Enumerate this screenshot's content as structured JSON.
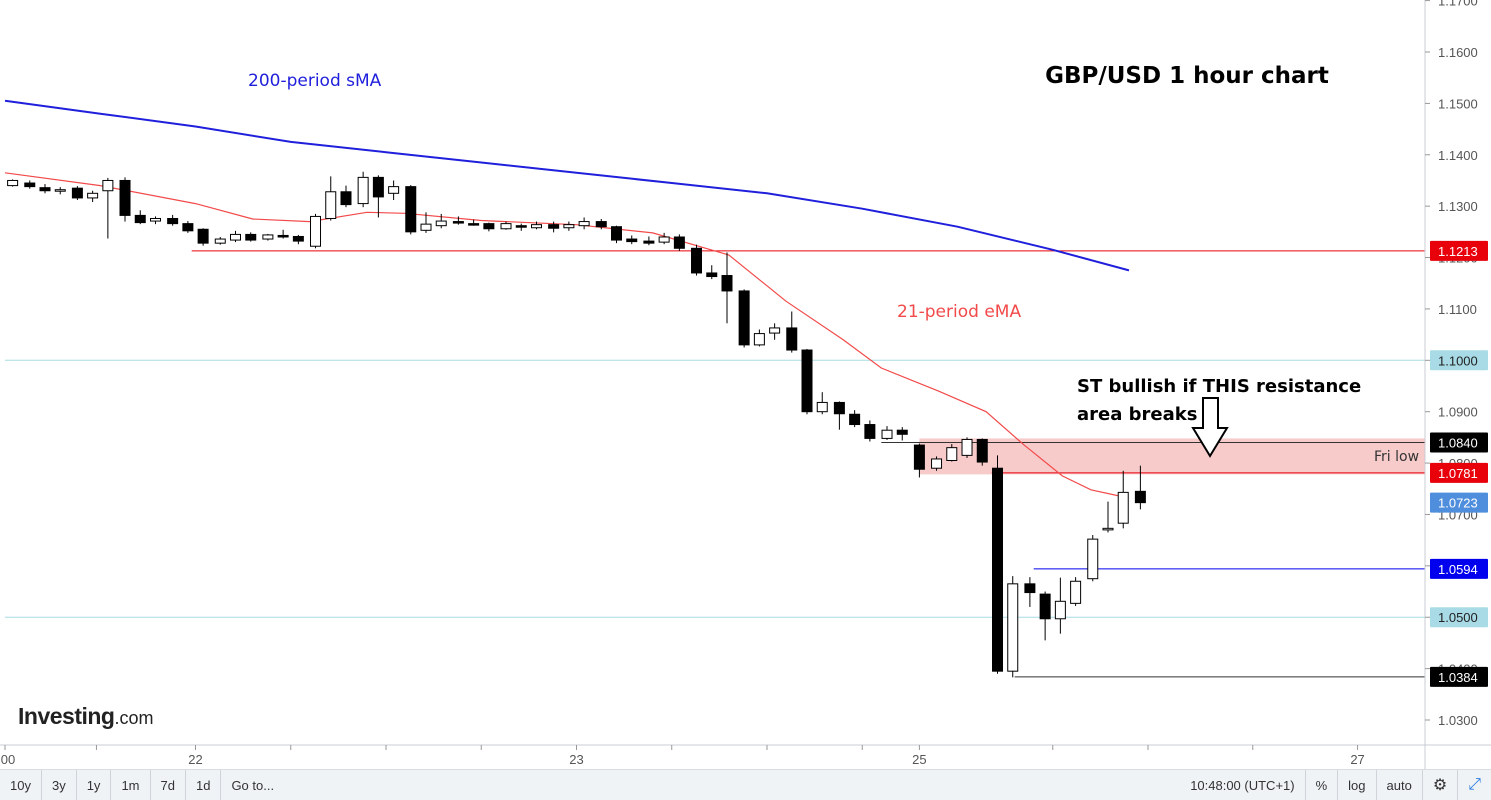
{
  "chart_data": {
    "type": "candlestick",
    "title": "GBP/USD 1 hour chart",
    "ylim": [
      1.025,
      1.17
    ],
    "y_ticks": [
      "1.0300",
      "1.0400",
      "1.0500",
      "1.0600",
      "1.0700",
      "1.0800",
      "1.0900",
      "1.1000",
      "1.1100",
      "1.1200",
      "1.1300",
      "1.1400",
      "1.1500",
      "1.1600",
      "1.1700"
    ],
    "x_tick_labels": [
      {
        "label": "00",
        "x": 0
      },
      {
        "label": "22",
        "x": 1
      },
      {
        "label": "23",
        "x": 3
      },
      {
        "label": "25",
        "x": 4.8
      },
      {
        "label": "27",
        "x": 7.1
      }
    ],
    "x_range": [
      0,
      7.6
    ],
    "series": [
      {
        "name": "200-period sMA",
        "color": "#1f1fdc",
        "points": [
          [
            0,
            1.1505
          ],
          [
            0.5,
            1.148
          ],
          [
            1,
            1.1455
          ],
          [
            1.5,
            1.1425
          ],
          [
            2,
            1.1405
          ],
          [
            2.5,
            1.1385
          ],
          [
            3,
            1.1365
          ],
          [
            3.5,
            1.1345
          ],
          [
            4,
            1.1325
          ],
          [
            4.5,
            1.1295
          ],
          [
            5,
            1.126
          ],
          [
            5.5,
            1.1215
          ],
          [
            5.9,
            1.1175
          ]
        ]
      },
      {
        "name": "21-period eMA",
        "color": "#f24a4a",
        "points": [
          [
            0,
            1.1365
          ],
          [
            0.5,
            1.134
          ],
          [
            1,
            1.1305
          ],
          [
            1.3,
            1.1275
          ],
          [
            1.6,
            1.127
          ],
          [
            1.9,
            1.1288
          ],
          [
            2.1,
            1.1286
          ],
          [
            2.5,
            1.1272
          ],
          [
            3,
            1.1264
          ],
          [
            3.4,
            1.1248
          ],
          [
            3.8,
            1.1205
          ],
          [
            4.1,
            1.1115
          ],
          [
            4.4,
            1.104
          ],
          [
            4.6,
            1.0985
          ],
          [
            4.9,
            1.094
          ],
          [
            5.15,
            1.09
          ],
          [
            5.35,
            1.0835
          ],
          [
            5.55,
            1.0775
          ],
          [
            5.7,
            1.0748
          ],
          [
            5.85,
            1.0736
          ]
        ]
      }
    ],
    "candles": [
      {
        "x": 0.04,
        "o": 1.134,
        "h": 1.1352,
        "l": 1.1338,
        "c": 1.135
      },
      {
        "x": 0.13,
        "o": 1.1345,
        "h": 1.135,
        "l": 1.1334,
        "c": 1.1338
      },
      {
        "x": 0.21,
        "o": 1.1336,
        "h": 1.1343,
        "l": 1.1325,
        "c": 1.133
      },
      {
        "x": 0.29,
        "o": 1.133,
        "h": 1.1337,
        "l": 1.1323,
        "c": 1.1332
      },
      {
        "x": 0.38,
        "o": 1.1335,
        "h": 1.1339,
        "l": 1.1312,
        "c": 1.1316
      },
      {
        "x": 0.46,
        "o": 1.1316,
        "h": 1.133,
        "l": 1.1308,
        "c": 1.1325
      },
      {
        "x": 0.54,
        "o": 1.133,
        "h": 1.1355,
        "l": 1.1237,
        "c": 1.135
      },
      {
        "x": 0.63,
        "o": 1.135,
        "h": 1.1356,
        "l": 1.127,
        "c": 1.1282
      },
      {
        "x": 0.71,
        "o": 1.1282,
        "h": 1.1292,
        "l": 1.1265,
        "c": 1.1268
      },
      {
        "x": 0.79,
        "o": 1.1271,
        "h": 1.128,
        "l": 1.1265,
        "c": 1.1276
      },
      {
        "x": 0.88,
        "o": 1.1276,
        "h": 1.1283,
        "l": 1.1262,
        "c": 1.1266
      },
      {
        "x": 0.96,
        "o": 1.1266,
        "h": 1.1271,
        "l": 1.1248,
        "c": 1.1252
      },
      {
        "x": 1.04,
        "o": 1.1255,
        "h": 1.1257,
        "l": 1.1223,
        "c": 1.1228
      },
      {
        "x": 1.13,
        "o": 1.1228,
        "h": 1.124,
        "l": 1.1225,
        "c": 1.1236
      },
      {
        "x": 1.21,
        "o": 1.1234,
        "h": 1.1252,
        "l": 1.123,
        "c": 1.1245
      },
      {
        "x": 1.29,
        "o": 1.1245,
        "h": 1.1249,
        "l": 1.1231,
        "c": 1.1234
      },
      {
        "x": 1.38,
        "o": 1.1236,
        "h": 1.1246,
        "l": 1.1233,
        "c": 1.1244
      },
      {
        "x": 1.46,
        "o": 1.1243,
        "h": 1.1254,
        "l": 1.1237,
        "c": 1.124
      },
      {
        "x": 1.54,
        "o": 1.1241,
        "h": 1.1244,
        "l": 1.1226,
        "c": 1.1232
      },
      {
        "x": 1.63,
        "o": 1.1222,
        "h": 1.1285,
        "l": 1.1218,
        "c": 1.128
      },
      {
        "x": 1.71,
        "o": 1.1276,
        "h": 1.1358,
        "l": 1.1272,
        "c": 1.1328
      },
      {
        "x": 1.79,
        "o": 1.1328,
        "h": 1.134,
        "l": 1.1298,
        "c": 1.1303
      },
      {
        "x": 1.88,
        "o": 1.1305,
        "h": 1.1367,
        "l": 1.1298,
        "c": 1.1356
      },
      {
        "x": 1.96,
        "o": 1.1356,
        "h": 1.136,
        "l": 1.1278,
        "c": 1.1318
      },
      {
        "x": 2.04,
        "o": 1.1325,
        "h": 1.135,
        "l": 1.1312,
        "c": 1.1338
      },
      {
        "x": 2.13,
        "o": 1.1338,
        "h": 1.1341,
        "l": 1.1245,
        "c": 1.125
      },
      {
        "x": 2.21,
        "o": 1.1253,
        "h": 1.1288,
        "l": 1.1248,
        "c": 1.1265
      },
      {
        "x": 2.29,
        "o": 1.1262,
        "h": 1.1285,
        "l": 1.1257,
        "c": 1.1271
      },
      {
        "x": 2.38,
        "o": 1.127,
        "h": 1.128,
        "l": 1.1264,
        "c": 1.1268
      },
      {
        "x": 2.46,
        "o": 1.1266,
        "h": 1.1274,
        "l": 1.1262,
        "c": 1.1264
      },
      {
        "x": 2.54,
        "o": 1.1266,
        "h": 1.1268,
        "l": 1.1251,
        "c": 1.1256
      },
      {
        "x": 2.63,
        "o": 1.1256,
        "h": 1.127,
        "l": 1.1254,
        "c": 1.1266
      },
      {
        "x": 2.71,
        "o": 1.1262,
        "h": 1.1266,
        "l": 1.1252,
        "c": 1.1259
      },
      {
        "x": 2.79,
        "o": 1.1258,
        "h": 1.127,
        "l": 1.1255,
        "c": 1.1264
      },
      {
        "x": 2.88,
        "o": 1.1264,
        "h": 1.127,
        "l": 1.1249,
        "c": 1.1257
      },
      {
        "x": 2.96,
        "o": 1.1258,
        "h": 1.127,
        "l": 1.1252,
        "c": 1.1264
      },
      {
        "x": 3.04,
        "o": 1.1262,
        "h": 1.1278,
        "l": 1.1255,
        "c": 1.127
      },
      {
        "x": 3.13,
        "o": 1.127,
        "h": 1.1275,
        "l": 1.1255,
        "c": 1.126
      },
      {
        "x": 3.21,
        "o": 1.126,
        "h": 1.1262,
        "l": 1.1228,
        "c": 1.1234
      },
      {
        "x": 3.29,
        "o": 1.1236,
        "h": 1.1243,
        "l": 1.1226,
        "c": 1.1231
      },
      {
        "x": 3.38,
        "o": 1.1232,
        "h": 1.1241,
        "l": 1.1224,
        "c": 1.1228
      },
      {
        "x": 3.46,
        "o": 1.123,
        "h": 1.1248,
        "l": 1.1226,
        "c": 1.124
      },
      {
        "x": 3.54,
        "o": 1.124,
        "h": 1.1245,
        "l": 1.1213,
        "c": 1.1218
      },
      {
        "x": 3.63,
        "o": 1.1218,
        "h": 1.1225,
        "l": 1.1165,
        "c": 1.117
      },
      {
        "x": 3.71,
        "o": 1.117,
        "h": 1.1185,
        "l": 1.1158,
        "c": 1.1163
      },
      {
        "x": 3.79,
        "o": 1.1165,
        "h": 1.121,
        "l": 1.1072,
        "c": 1.1135
      },
      {
        "x": 3.88,
        "o": 1.1135,
        "h": 1.1138,
        "l": 1.1025,
        "c": 1.103
      },
      {
        "x": 3.96,
        "o": 1.103,
        "h": 1.106,
        "l": 1.1027,
        "c": 1.1052
      },
      {
        "x": 4.04,
        "o": 1.1053,
        "h": 1.1072,
        "l": 1.104,
        "c": 1.1063
      },
      {
        "x": 4.13,
        "o": 1.1063,
        "h": 1.1095,
        "l": 1.1015,
        "c": 1.102
      },
      {
        "x": 4.21,
        "o": 1.102,
        "h": 1.1022,
        "l": 1.0895,
        "c": 1.09
      },
      {
        "x": 4.29,
        "o": 1.09,
        "h": 1.0938,
        "l": 1.0895,
        "c": 1.0918
      },
      {
        "x": 4.38,
        "o": 1.0918,
        "h": 1.092,
        "l": 1.0865,
        "c": 1.0896
      },
      {
        "x": 4.46,
        "o": 1.0895,
        "h": 1.0903,
        "l": 1.087,
        "c": 1.0875
      },
      {
        "x": 4.54,
        "o": 1.0875,
        "h": 1.0883,
        "l": 1.0842,
        "c": 1.0848
      },
      {
        "x": 4.63,
        "o": 1.0848,
        "h": 1.0872,
        "l": 1.0845,
        "c": 1.0864
      },
      {
        "x": 4.71,
        "o": 1.0864,
        "h": 1.087,
        "l": 1.0844,
        "c": 1.0856
      },
      {
        "x": 4.8,
        "o": 1.0835,
        "h": 1.0838,
        "l": 1.0772,
        "c": 1.0788
      },
      {
        "x": 4.89,
        "o": 1.079,
        "h": 1.0813,
        "l": 1.0785,
        "c": 1.0808
      },
      {
        "x": 4.97,
        "o": 1.0805,
        "h": 1.0837,
        "l": 1.0803,
        "c": 1.083
      },
      {
        "x": 5.05,
        "o": 1.0815,
        "h": 1.085,
        "l": 1.081,
        "c": 1.0846
      },
      {
        "x": 5.13,
        "o": 1.0846,
        "h": 1.0848,
        "l": 1.0795,
        "c": 1.0802
      },
      {
        "x": 5.21,
        "o": 1.079,
        "h": 1.0815,
        "l": 1.039,
        "c": 1.0395
      },
      {
        "x": 5.29,
        "o": 1.0395,
        "h": 1.058,
        "l": 1.0383,
        "c": 1.0565
      },
      {
        "x": 5.38,
        "o": 1.0565,
        "h": 1.0578,
        "l": 1.052,
        "c": 1.0548
      },
      {
        "x": 5.46,
        "o": 1.0545,
        "h": 1.055,
        "l": 1.0455,
        "c": 1.0497
      },
      {
        "x": 5.54,
        "o": 1.0497,
        "h": 1.0577,
        "l": 1.0468,
        "c": 1.0531
      },
      {
        "x": 5.62,
        "o": 1.0527,
        "h": 1.0578,
        "l": 1.0522,
        "c": 1.057
      },
      {
        "x": 5.71,
        "o": 1.0575,
        "h": 1.066,
        "l": 1.057,
        "c": 1.0652
      },
      {
        "x": 5.79,
        "o": 1.067,
        "h": 1.0725,
        "l": 1.0665,
        "c": 1.0673
      },
      {
        "x": 5.87,
        "o": 1.0683,
        "h": 1.0785,
        "l": 1.0673,
        "c": 1.0743
      },
      {
        "x": 5.96,
        "o": 1.0745,
        "h": 1.0795,
        "l": 1.071,
        "c": 1.0723
      }
    ],
    "horizontal_levels": [
      {
        "price": 1.1213,
        "label": "1.1213",
        "color": "#e8000b",
        "label_bg": "#e8000b",
        "from_x": 0.98,
        "to_x": 7.6
      },
      {
        "price": 1.1,
        "label": "1.1000",
        "color": "#a8dbe6",
        "label_bg": "#a8dbe6",
        "from_x": 0,
        "to_x": 7.6
      },
      {
        "price": 1.084,
        "label": "1.0840",
        "color": "#333333",
        "label_bg": "#000000",
        "from_x": 4.6,
        "to_x": 7.6
      },
      {
        "price": 1.0781,
        "label": "1.0781",
        "color": "#e8000b",
        "label_bg": "#e8000b",
        "from_x": 5.18,
        "to_x": 7.6
      },
      {
        "price": 1.0723,
        "label": "1.0723",
        "color": "",
        "label_bg": "#4f8edc",
        "from_x": null,
        "to_x": null
      },
      {
        "price": 1.0594,
        "label": "1.0594",
        "color": "#0000ee",
        "label_bg": "#0000ee",
        "from_x": 5.4,
        "to_x": 7.6
      },
      {
        "price": 1.05,
        "label": "1.0500",
        "color": "#a8dbe6",
        "label_bg": "#a8dbe6",
        "from_x": 0,
        "to_x": 7.6
      },
      {
        "price": 1.0384,
        "label": "1.0384",
        "color": "#333333",
        "label_bg": "#000000",
        "from_x": 5.3,
        "to_x": 7.6
      }
    ],
    "zone": {
      "from_price": 1.0778,
      "to_price": 1.0848,
      "from_x": 4.8,
      "to_x": 7.6,
      "color": "#f6b9b9"
    },
    "annotations": {
      "sma_label": "200-period sMA",
      "ema_label": "21-period eMA",
      "note_line1": "ST bullish if THIS resistance",
      "note_line2": "area breaks",
      "fri_low": "Fri low"
    }
  },
  "branding": {
    "logo_main": "Investing",
    "logo_suffix": ".com"
  },
  "toolbar": {
    "ranges": [
      "10y",
      "3y",
      "1y",
      "1m",
      "7d",
      "1d"
    ],
    "goto": "Go to...",
    "time": "10:48:00 (UTC+1)",
    "percent": "%",
    "log": "log",
    "auto": "auto",
    "settings_icon": "gear-icon",
    "fullscreen_icon": "expand-icon"
  }
}
